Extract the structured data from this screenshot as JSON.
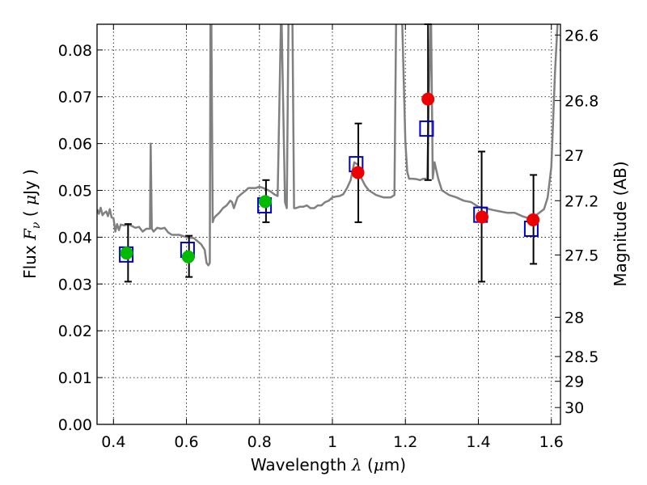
{
  "chart_data": {
    "type": "scatter",
    "xlabel": {
      "pre": "Wavelength  ",
      "sym": "λ",
      "post": " (",
      "unit_sym": "μ",
      "unit_post": "m)"
    },
    "ylabel": {
      "pre": "Flux  ",
      "sym": "F",
      "sub": "ν",
      "post": "  ( ",
      "unit_sym": "μ",
      "unit_post": "Jy )"
    },
    "ylabel_right": "Magnitude (AB)",
    "xlim": [
      0.355,
      1.625
    ],
    "ylim": [
      0.0,
      0.0855
    ],
    "grid": true,
    "x_ticks": [
      {
        "value": 0.4,
        "label": "0.4"
      },
      {
        "value": 0.6,
        "label": "0.6"
      },
      {
        "value": 0.8,
        "label": "0.8"
      },
      {
        "value": 1.0,
        "label": "1"
      },
      {
        "value": 1.2,
        "label": "1.2"
      },
      {
        "value": 1.4,
        "label": "1.4"
      },
      {
        "value": 1.6,
        "label": "1.6"
      }
    ],
    "y_ticks": [
      {
        "value": 0.0,
        "label": "0.00"
      },
      {
        "value": 0.01,
        "label": "0.01"
      },
      {
        "value": 0.02,
        "label": "0.02"
      },
      {
        "value": 0.03,
        "label": "0.03"
      },
      {
        "value": 0.04,
        "label": "0.04"
      },
      {
        "value": 0.05,
        "label": "0.05"
      },
      {
        "value": 0.06,
        "label": "0.06"
      },
      {
        "value": 0.07,
        "label": "0.07"
      },
      {
        "value": 0.08,
        "label": "0.08"
      }
    ],
    "right_ticks": [
      {
        "label": "26.6",
        "flux": 0.0832
      },
      {
        "label": "26.8",
        "flux": 0.0692
      },
      {
        "label": "27",
        "flux": 0.0575
      },
      {
        "label": "27.2",
        "flux": 0.0478
      },
      {
        "label": "27.5",
        "flux": 0.0362
      },
      {
        "label": "28",
        "flux": 0.0229
      },
      {
        "label": "28.5",
        "flux": 0.0145
      },
      {
        "label": "29",
        "flux": 0.0092
      },
      {
        "label": "30",
        "flux": 0.0036
      }
    ],
    "series": [
      {
        "kind": "line",
        "color": "#808080",
        "x": [
          0.355,
          0.36,
          0.365,
          0.37,
          0.375,
          0.38,
          0.385,
          0.39,
          0.395,
          0.4,
          0.405,
          0.41,
          0.415,
          0.42,
          0.43,
          0.44,
          0.45,
          0.46,
          0.47,
          0.48,
          0.49,
          0.5,
          0.502,
          0.505,
          0.51,
          0.52,
          0.53,
          0.54,
          0.55,
          0.56,
          0.58,
          0.6,
          0.62,
          0.64,
          0.65,
          0.655,
          0.66,
          0.664,
          0.666,
          0.668,
          0.672,
          0.675,
          0.68,
          0.69,
          0.7,
          0.71,
          0.72,
          0.725,
          0.73,
          0.74,
          0.75,
          0.76,
          0.77,
          0.78,
          0.79,
          0.8,
          0.81,
          0.82,
          0.83,
          0.84,
          0.85,
          0.86,
          0.87,
          0.875,
          0.88,
          0.89,
          0.895,
          0.9,
          0.91,
          0.92,
          0.93,
          0.94,
          0.95,
          0.96,
          0.97,
          0.98,
          0.99,
          1.0,
          1.01,
          1.02,
          1.03,
          1.04,
          1.05,
          1.06,
          1.07,
          1.08,
          1.09,
          1.1,
          1.12,
          1.14,
          1.16,
          1.17,
          1.175,
          1.18,
          1.19,
          1.2,
          1.205,
          1.21,
          1.22,
          1.23,
          1.24,
          1.25,
          1.26,
          1.27,
          1.275,
          1.28,
          1.29,
          1.3,
          1.32,
          1.34,
          1.36,
          1.38,
          1.4,
          1.42,
          1.44,
          1.46,
          1.48,
          1.5,
          1.52,
          1.54,
          1.56,
          1.58,
          1.59,
          1.6,
          1.61,
          1.62
        ],
        "y": [
          0.046,
          0.045,
          0.0463,
          0.0447,
          0.0452,
          0.0455,
          0.0445,
          0.046,
          0.0442,
          0.0441,
          0.0412,
          0.0428,
          0.0415,
          0.0427,
          0.0425,
          0.0428,
          0.0424,
          0.042,
          0.0422,
          0.0412,
          0.0418,
          0.0418,
          0.06,
          0.0418,
          0.0412,
          0.042,
          0.0418,
          0.042,
          0.041,
          0.0405,
          0.0405,
          0.04,
          0.0398,
          0.0385,
          0.0373,
          0.0345,
          0.034,
          0.0345,
          0.09,
          0.09,
          0.0432,
          0.044,
          0.0445,
          0.0452,
          0.0462,
          0.0468,
          0.0478,
          0.0475,
          0.0462,
          0.0485,
          0.0492,
          0.0498,
          0.0505,
          0.0505,
          0.0505,
          0.0508,
          0.0505,
          0.0502,
          0.0498,
          0.0492,
          0.0488,
          0.09,
          0.0475,
          0.0462,
          0.09,
          0.09,
          0.0462,
          0.0462,
          0.0465,
          0.0465,
          0.0468,
          0.0462,
          0.0462,
          0.0468,
          0.0468,
          0.0475,
          0.0478,
          0.0485,
          0.0487,
          0.0488,
          0.0492,
          0.0505,
          0.0522,
          0.056,
          0.0555,
          0.0525,
          0.051,
          0.05,
          0.049,
          0.0485,
          0.0485,
          0.049,
          0.09,
          0.09,
          0.09,
          0.0605,
          0.054,
          0.0525,
          0.0525,
          0.0524,
          0.0522,
          0.0525,
          0.0525,
          0.09,
          0.0525,
          0.056,
          0.0525,
          0.05,
          0.049,
          0.0485,
          0.0478,
          0.0475,
          0.0465,
          0.0462,
          0.0458,
          0.0455,
          0.0452,
          0.0452,
          0.0445,
          0.044,
          0.0448,
          0.046,
          0.0485,
          0.055,
          0.075,
          0.09
        ]
      },
      {
        "kind": "model-squares",
        "color": "#0000cc",
        "x": [
          0.435,
          0.603,
          0.814,
          1.065,
          1.258,
          1.406,
          1.545
        ],
        "y": [
          0.0363,
          0.0373,
          0.0468,
          0.0556,
          0.0632,
          0.0448,
          0.0418
        ]
      },
      {
        "kind": "points",
        "color": "#00bb00",
        "x": [
          0.436,
          0.605,
          0.816
        ],
        "y": [
          0.0366,
          0.0358,
          0.0476
        ]
      },
      {
        "kind": "points",
        "color": "#ee0000",
        "x": [
          1.07,
          1.262,
          1.41,
          1.55
        ],
        "y": [
          0.0538,
          0.0695,
          0.0443,
          0.0437
        ]
      }
    ],
    "error_bars": [
      {
        "x": 0.44,
        "low": 0.0305,
        "high": 0.0428
      },
      {
        "x": 0.607,
        "low": 0.0315,
        "high": 0.0403
      },
      {
        "x": 0.818,
        "low": 0.0432,
        "high": 0.0522
      },
      {
        "x": 1.071,
        "low": 0.0432,
        "high": 0.0643
      },
      {
        "x": 1.262,
        "low": 0.0522,
        "high": 0.0855
      },
      {
        "x": 1.409,
        "low": 0.0305,
        "high": 0.0583
      },
      {
        "x": 1.551,
        "low": 0.0343,
        "high": 0.0533
      }
    ]
  }
}
